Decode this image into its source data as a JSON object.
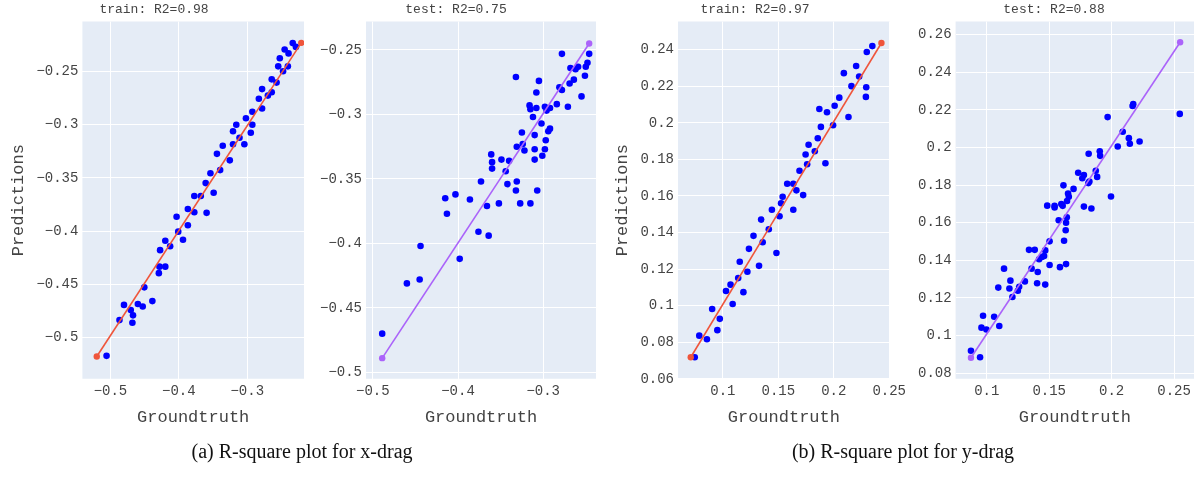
{
  "chart_data": [
    {
      "type": "scatter",
      "title": "train: R2=0.98",
      "xlabel": "Groundtruth",
      "ylabel": "Predictions",
      "grid": true,
      "marker": "circle",
      "annotations": [
        "(a) R-square plot for x-drag"
      ],
      "xlim": [
        -0.541,
        -0.217
      ],
      "ylim": [
        -0.539,
        -0.203
      ],
      "xticks": [
        {
          "value": -0.5,
          "label": "−0.5"
        },
        {
          "value": -0.4,
          "label": "−0.4"
        },
        {
          "value": -0.3,
          "label": "−0.3"
        }
      ],
      "yticks": [
        {
          "value": -0.5,
          "label": "−0.5"
        },
        {
          "value": -0.45,
          "label": "−0.45"
        },
        {
          "value": -0.4,
          "label": "−0.4"
        },
        {
          "value": -0.35,
          "label": "−0.35"
        },
        {
          "value": -0.3,
          "label": "−0.3"
        },
        {
          "value": -0.25,
          "label": "−0.25"
        }
      ],
      "series": [
        {
          "type": "scatter",
          "color": "#0000ff",
          "x": [
            -0.5057,
            -0.4868,
            -0.4802,
            -0.4703,
            -0.467,
            -0.4679,
            -0.4599,
            -0.4528,
            -0.4505,
            -0.4387,
            -0.4292,
            -0.4283,
            -0.4198,
            -0.4274,
            -0.4198,
            -0.4127,
            -0.4033,
            -0.4009,
            -0.3939,
            -0.3868,
            -0.3774,
            -0.3594,
            -0.3679,
            -0.3608,
            -0.3491,
            -0.3538,
            -0.3396,
            -0.3358,
            -0.3443,
            -0.3255,
            -0.3208,
            -0.3113,
            -0.316,
            -0.3042,
            -0.2948,
            -0.3019,
            -0.2925,
            -0.283,
            -0.2783,
            -0.2698,
            -0.2642,
            -0.2571,
            -0.2547,
            -0.2524,
            -0.2476,
            -0.2406,
            -0.2396,
            -0.2453,
            -0.2335,
            -0.2288,
            -0.3868,
            -0.3774,
            -0.3208,
            -0.2925,
            -0.2783,
            -0.2642
          ],
          "values": [
            -0.5174,
            -0.4838,
            -0.4695,
            -0.4744,
            -0.4793,
            -0.4863,
            -0.4686,
            -0.471,
            -0.453,
            -0.4659,
            -0.4396,
            -0.4335,
            -0.4335,
            -0.418,
            -0.4091,
            -0.4143,
            -0.3866,
            -0.4006,
            -0.4082,
            -0.3945,
            -0.3823,
            -0.3829,
            -0.3671,
            -0.3549,
            -0.364,
            -0.3457,
            -0.3427,
            -0.3198,
            -0.3274,
            -0.3335,
            -0.3183,
            -0.3122,
            -0.3,
            -0.3183,
            -0.3076,
            -0.2939,
            -0.2878,
            -0.2756,
            -0.2848,
            -0.2726,
            -0.2573,
            -0.2604,
            -0.2451,
            -0.2375,
            -0.2497,
            -0.2451,
            -0.2329,
            -0.2293,
            -0.2232,
            -0.2268,
            -0.3793,
            -0.3671,
            -0.3061,
            -0.3,
            -0.2665,
            -0.2695
          ]
        },
        {
          "type": "line",
          "color": "#ef553b",
          "x": [
            -0.52,
            -0.221
          ],
          "values": [
            -0.518,
            -0.223
          ]
        }
      ]
    },
    {
      "type": "scatter",
      "title": "test: R2=0.75",
      "xlabel": "Groundtruth",
      "grid": true,
      "marker": "circle",
      "xlim": [
        -0.508,
        -0.238
      ],
      "ylim": [
        -0.505,
        -0.228
      ],
      "xticks": [
        {
          "value": -0.5,
          "label": "−0.5"
        },
        {
          "value": -0.4,
          "label": "−0.4"
        },
        {
          "value": -0.3,
          "label": "−0.3"
        }
      ],
      "yticks": [
        {
          "value": -0.5,
          "label": "−0.5"
        },
        {
          "value": -0.45,
          "label": "−0.45"
        },
        {
          "value": -0.4,
          "label": "−0.4"
        },
        {
          "value": -0.35,
          "label": "−0.35"
        },
        {
          "value": -0.3,
          "label": "−0.3"
        },
        {
          "value": -0.25,
          "label": "−0.25"
        }
      ],
      "series": [
        {
          "type": "scatter",
          "color": "#0000ff",
          "x": [
            -0.489,
            -0.46,
            -0.445,
            -0.444,
            -0.398,
            -0.415,
            -0.403,
            -0.413,
            -0.386,
            -0.376,
            -0.364,
            -0.366,
            -0.373,
            -0.361,
            -0.36,
            -0.36,
            -0.352,
            -0.349,
            -0.344,
            -0.342,
            -0.34,
            -0.332,
            -0.331,
            -0.332,
            -0.327,
            -0.331,
            -0.325,
            -0.324,
            -0.322,
            -0.316,
            -0.315,
            -0.315,
            -0.312,
            -0.31,
            -0.31,
            -0.31,
            -0.308,
            -0.307,
            -0.305,
            -0.308,
            -0.302,
            -0.301,
            -0.298,
            -0.297,
            -0.298,
            -0.294,
            -0.292,
            -0.292,
            -0.296,
            -0.284,
            -0.281,
            -0.278,
            -0.278,
            -0.271,
            -0.269,
            -0.268,
            -0.264,
            -0.262,
            -0.259,
            -0.255,
            -0.251,
            -0.25,
            -0.248,
            -0.246
          ],
          "values": [
            -0.47,
            -0.431,
            -0.428,
            -0.402,
            -0.412,
            -0.365,
            -0.362,
            -0.377,
            -0.366,
            -0.391,
            -0.394,
            -0.371,
            -0.352,
            -0.331,
            -0.337,
            -0.342,
            -0.369,
            -0.335,
            -0.344,
            -0.354,
            -0.336,
            -0.271,
            -0.352,
            -0.359,
            -0.369,
            -0.325,
            -0.314,
            -0.323,
            -0.328,
            -0.293,
            -0.296,
            -0.369,
            -0.302,
            -0.316,
            -0.327,
            -0.335,
            -0.283,
            -0.359,
            -0.274,
            -0.295,
            -0.307,
            -0.332,
            -0.294,
            -0.32,
            -0.327,
            -0.313,
            -0.311,
            -0.295,
            -0.297,
            -0.292,
            -0.279,
            -0.281,
            -0.253,
            -0.294,
            -0.276,
            -0.264,
            -0.273,
            -0.265,
            -0.263,
            -0.286,
            -0.27,
            -0.263,
            -0.26,
            -0.253
          ]
        },
        {
          "type": "line",
          "color": "#ab63fa",
          "x": [
            -0.489,
            -0.246
          ],
          "values": [
            -0.489,
            -0.245
          ]
        }
      ]
    },
    {
      "type": "scatter",
      "title": "train: R2=0.97",
      "xlabel": "Groundtruth",
      "ylabel": "Predictions",
      "grid": true,
      "marker": "circle",
      "annotations": [
        "(b) R-square plot for y-drag"
      ],
      "xlim": [
        0.0595,
        0.2505
      ],
      "ylim": [
        0.06,
        0.2554
      ],
      "xticks": [
        0.1,
        0.15,
        0.2,
        0.25
      ],
      "yticks": [
        0.06,
        0.08,
        0.1,
        0.12,
        0.14,
        0.16,
        0.18,
        0.2,
        0.22,
        0.24
      ],
      "series": [
        {
          "type": "scatter",
          "color": "#0000ff",
          "x": [
            0.0746,
            0.0787,
            0.0856,
            0.0903,
            0.095,
            0.0972,
            0.1028,
            0.1088,
            0.1069,
            0.1138,
            0.1185,
            0.1152,
            0.1221,
            0.1235,
            0.1326,
            0.1276,
            0.1359,
            0.1345,
            0.1414,
            0.1483,
            0.1442,
            0.1511,
            0.1539,
            0.1635,
            0.158,
            0.1663,
            0.1724,
            0.1691,
            0.176,
            0.1746,
            0.1829,
            0.1925,
            0.1856,
            0.1884,
            0.187,
            0.1939,
            0.1994,
            0.2008,
            0.205,
            0.2133,
            0.2091,
            0.216,
            0.2202,
            0.2229,
            0.2293,
            0.229,
            0.2298,
            0.2348,
            0.1525,
            0.1635,
            0.1773
          ],
          "values": [
            0.0718,
            0.0836,
            0.0816,
            0.0982,
            0.0866,
            0.0928,
            0.108,
            0.1009,
            0.1115,
            0.1151,
            0.1074,
            0.124,
            0.1186,
            0.1311,
            0.1218,
            0.1382,
            0.1347,
            0.1471,
            0.1418,
            0.1288,
            0.1525,
            0.1489,
            0.1596,
            0.1525,
            0.1667,
            0.1631,
            0.1605,
            0.1738,
            0.1774,
            0.1827,
            0.1845,
            0.1779,
            0.1916,
            0.1978,
            0.2076,
            0.2058,
            0.1987,
            0.2094,
            0.2138,
            0.2032,
            0.2272,
            0.2201,
            0.2311,
            0.2254,
            0.2195,
            0.2142,
            0.2388,
            0.242,
            0.156,
            0.1667,
            0.188
          ]
        },
        {
          "type": "line",
          "color": "#ef553b",
          "x": [
            0.071,
            0.243
          ],
          "values": [
            0.0718,
            0.2437
          ]
        }
      ]
    },
    {
      "type": "scatter",
      "title": "test: R2=0.88",
      "xlabel": "Groundtruth",
      "grid": true,
      "marker": "circle",
      "xlim": [
        0.075,
        0.266
      ],
      "ylim": [
        0.077,
        0.267
      ],
      "xticks": [
        0.1,
        0.15,
        0.2,
        0.25
      ],
      "yticks": [
        0.08,
        0.1,
        0.12,
        0.14,
        0.16,
        0.18,
        0.2,
        0.22,
        0.24,
        0.26
      ],
      "series": [
        {
          "type": "scatter",
          "color": "#0000ff",
          "x": [
            0.0873,
            0.0946,
            0.0957,
            0.097,
            0.0997,
            0.1059,
            0.11,
            0.1092,
            0.1138,
            0.1181,
            0.1189,
            0.1205,
            0.1249,
            0.1259,
            0.1305,
            0.1338,
            0.1359,
            0.1384,
            0.1403,
            0.1408,
            0.1419,
            0.1441,
            0.1459,
            0.1468,
            0.1468,
            0.1484,
            0.1503,
            0.1503,
            0.1543,
            0.1543,
            0.1576,
            0.1586,
            0.1597,
            0.1608,
            0.1614,
            0.1619,
            0.1632,
            0.1635,
            0.1635,
            0.1641,
            0.1643,
            0.1651,
            0.1657,
            0.1695,
            0.1732,
            0.1765,
            0.1778,
            0.1778,
            0.1814,
            0.1822,
            0.1816,
            0.1838,
            0.1873,
            0.1884,
            0.1905,
            0.1908,
            0.1968,
            0.1995,
            0.2049,
            0.2089,
            0.2138,
            0.2146,
            0.2168,
            0.2173,
            0.2224,
            0.2546
          ],
          "values": [
            0.0919,
            0.0885,
            0.1042,
            0.1105,
            0.1032,
            0.11,
            0.1051,
            0.1255,
            0.1356,
            0.125,
            0.1292,
            0.1205,
            0.1238,
            0.1259,
            0.1288,
            0.1456,
            0.1356,
            0.1456,
            0.1278,
            0.1338,
            0.1406,
            0.1418,
            0.1423,
            0.1453,
            0.1271,
            0.1691,
            0.1501,
            0.1375,
            0.169,
            0.1681,
            0.1613,
            0.1364,
            0.17,
            0.169,
            0.1799,
            0.1504,
            0.156,
            0.16,
            0.138,
            0.1629,
            0.1716,
            0.1755,
            0.1738,
            0.178,
            0.1866,
            0.1837,
            0.1854,
            0.1686,
            0.1811,
            0.1819,
            0.1967,
            0.1676,
            0.1877,
            0.1844,
            0.198,
            0.1956,
            0.2162,
            0.174,
            0.2006,
            0.2084,
            0.205,
            0.202,
            0.2221,
            0.2231,
            0.2032,
            0.2179
          ]
        },
        {
          "type": "line",
          "color": "#ab63fa",
          "x": [
            0.0873,
            0.2549
          ],
          "values": [
            0.0882,
            0.256
          ]
        }
      ]
    }
  ]
}
